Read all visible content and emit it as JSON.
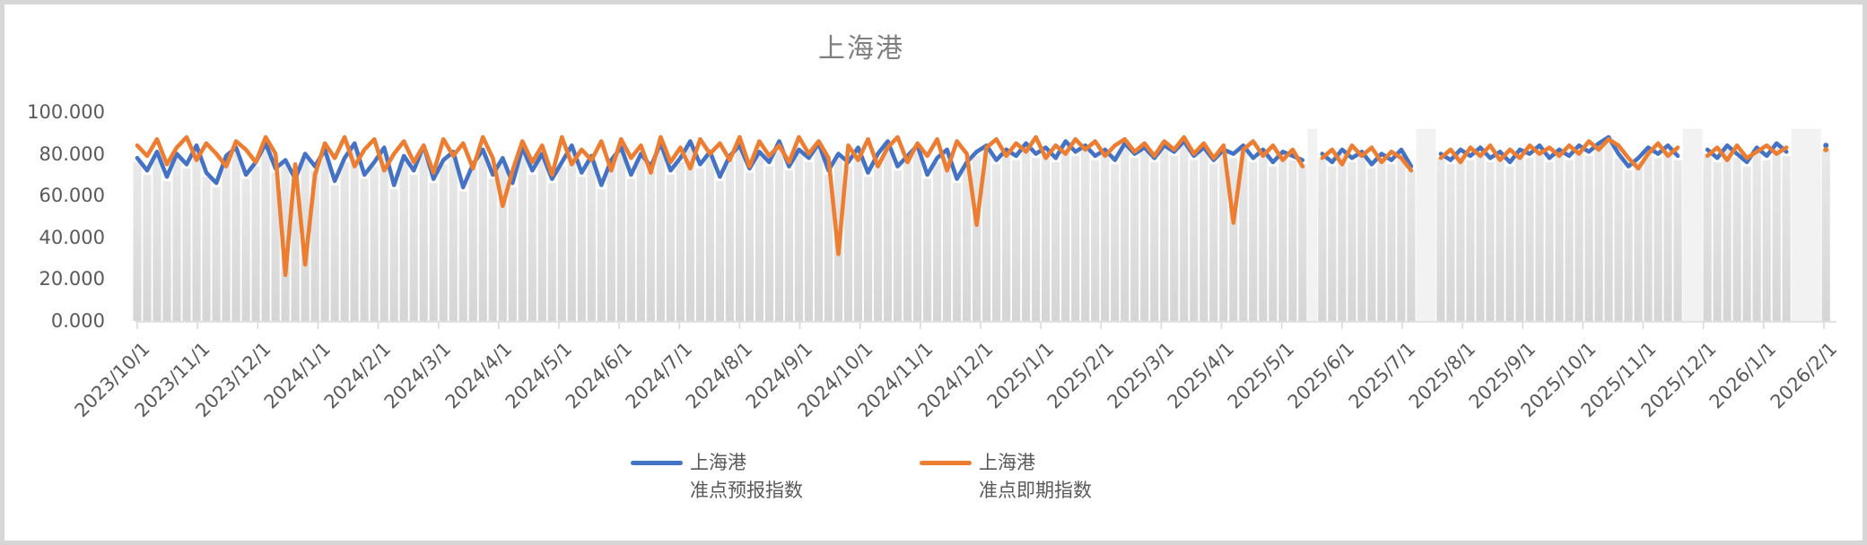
{
  "chart": {
    "title": "上海港",
    "title_color": "#7f7f7f"
  },
  "colors": {
    "series_blue": "#4472C4",
    "series_orange": "#ED7D31",
    "column_fill_top": "#e9e9e9",
    "column_fill_bottom": "#d5d5d5",
    "gap_band": "#f2f2f2",
    "axis_line": "#d9d9d9",
    "axis_text": "#595959",
    "frame_border": "#d6d6d6"
  },
  "legend": {
    "items": [
      {
        "line1": "上海港",
        "line2": "准点预报指数",
        "color": "#4472C4"
      },
      {
        "line1": "上海港",
        "line2": "准点即期指数",
        "color": "#ED7D31"
      }
    ]
  },
  "chart_data": {
    "type": "line",
    "title": "上海港",
    "xlabel": "",
    "ylabel": "",
    "ylim": [
      0,
      100
    ],
    "grid": false,
    "legend_position": "bottom",
    "x_start_date": "2023/10/1",
    "x_step_days": 5,
    "x_tick_labels": [
      "2023/10/1",
      "2023/11/1",
      "2023/12/1",
      "2024/1/1",
      "2024/2/1",
      "2024/3/1",
      "2024/4/1",
      "2024/5/1",
      "2024/6/1",
      "2024/7/1",
      "2024/8/1",
      "2024/9/1",
      "2024/10/1",
      "2024/11/1",
      "2024/12/1",
      "2025/1/1",
      "2025/2/1",
      "2025/3/1",
      "2025/4/1",
      "2025/5/1",
      "2025/6/1",
      "2025/7/1",
      "2025/8/1",
      "2025/9/1",
      "2025/10/1",
      "2025/11/1",
      "2025/12/1",
      "2026/1/1",
      "2026/2/1"
    ],
    "y_tick_labels": [
      "0.000",
      "20.000",
      "40.000",
      "60.000",
      "80.000",
      "100.000"
    ],
    "y_tick_values": [
      0,
      20,
      40,
      60,
      80,
      100
    ],
    "notable_features": [
      "orange dips to ~22 near 2023/12/13 and ~27 near 2023/12/25",
      "orange dip to ~55 near 2024/4/1",
      "orange dip to ~32 near 2024/9/22",
      "orange dip to ~46 near 2024/11/30",
      "orange dip to ~47 near 2025/4/10",
      "data gaps (no columns or lines) around 2025/5/18, 2025/7/10-19, 2025/11/21-30, 2026/1/18-30",
      "single isolated data point at 2026/2/1"
    ],
    "series": [
      {
        "name": "上海港 准点预报指数",
        "color": "#4472C4",
        "values": [
          78,
          72,
          81,
          69,
          80,
          75,
          84,
          71,
          66,
          79,
          83,
          70,
          76,
          85,
          73,
          77,
          68,
          80,
          74,
          82,
          67,
          78,
          85,
          70,
          76,
          83,
          65,
          79,
          72,
          84,
          68,
          77,
          81,
          64,
          75,
          82,
          70,
          78,
          66,
          83,
          72,
          80,
          68,
          76,
          84,
          71,
          79,
          65,
          77,
          83,
          70,
          80,
          74,
          85,
          72,
          78,
          86,
          75,
          81,
          69,
          79,
          84,
          73,
          81,
          76,
          86,
          74,
          82,
          78,
          85,
          72,
          80,
          76,
          83,
          71,
          80,
          86,
          74,
          79,
          84,
          70,
          78,
          82,
          68,
          76,
          81,
          84,
          77,
          82,
          79,
          85,
          80,
          83,
          78,
          86,
          81,
          84,
          79,
          82,
          77,
          85,
          80,
          83,
          78,
          84,
          81,
          86,
          79,
          83,
          77,
          82,
          80,
          84,
          78,
          82,
          76,
          81,
          79,
          77,
          null,
          80,
          76,
          82,
          78,
          81,
          75,
          80,
          77,
          82,
          74,
          null,
          null,
          80,
          77,
          82,
          79,
          83,
          78,
          81,
          76,
          82,
          80,
          84,
          78,
          82,
          79,
          84,
          81,
          85,
          88,
          80,
          74,
          78,
          83,
          80,
          84,
          79,
          null,
          null,
          82,
          78,
          84,
          80,
          76,
          83,
          79,
          85,
          81,
          null,
          null,
          null,
          84
        ]
      },
      {
        "name": "上海港 准点即期指数",
        "color": "#ED7D31",
        "values": [
          84,
          79,
          87,
          75,
          83,
          88,
          77,
          85,
          80,
          74,
          86,
          82,
          76,
          88,
          80,
          22,
          75,
          27,
          70,
          85,
          78,
          88,
          74,
          82,
          87,
          72,
          80,
          86,
          76,
          84,
          71,
          87,
          79,
          85,
          73,
          88,
          78,
          55,
          72,
          86,
          76,
          84,
          70,
          88,
          75,
          82,
          77,
          86,
          72,
          87,
          78,
          84,
          71,
          88,
          76,
          83,
          73,
          87,
          80,
          85,
          77,
          88,
          74,
          86,
          79,
          84,
          76,
          88,
          80,
          86,
          78,
          32,
          84,
          77,
          87,
          74,
          83,
          88,
          76,
          85,
          79,
          87,
          72,
          86,
          80,
          46,
          83,
          87,
          79,
          85,
          81,
          88,
          78,
          84,
          80,
          87,
          82,
          86,
          79,
          84,
          87,
          81,
          85,
          79,
          86,
          82,
          88,
          80,
          85,
          78,
          84,
          47,
          82,
          86,
          79,
          84,
          77,
          82,
          74,
          null,
          78,
          82,
          75,
          84,
          79,
          83,
          76,
          81,
          78,
          72,
          null,
          null,
          78,
          82,
          76,
          83,
          79,
          84,
          77,
          82,
          78,
          84,
          80,
          83,
          79,
          84,
          80,
          86,
          82,
          87,
          84,
          78,
          73,
          80,
          85,
          79,
          83,
          null,
          null,
          79,
          83,
          77,
          84,
          78,
          81,
          84,
          80,
          83,
          null,
          null,
          null,
          82
        ]
      }
    ]
  }
}
